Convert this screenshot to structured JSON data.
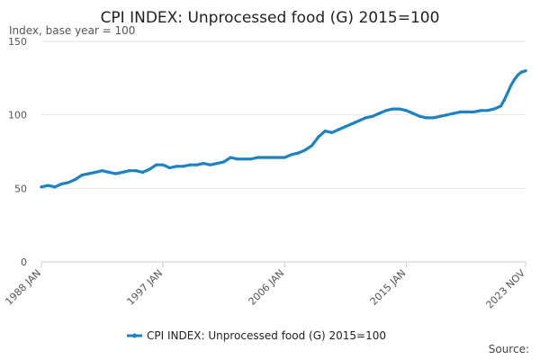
{
  "chart_data": {
    "type": "line",
    "title": "CPI INDEX: Unprocessed food (G) 2015=100",
    "subtitle": "Index, base year = 100",
    "xlabel": "",
    "ylabel": "Index, base year = 100",
    "ylim": [
      0,
      150
    ],
    "y_ticks": [
      0,
      50,
      100,
      150
    ],
    "x_range": [
      "1988-01",
      "2023-11"
    ],
    "x_tick_labels": [
      "1988 JAN",
      "1997 JAN",
      "2006 JAN",
      "2015 JAN",
      "2023 NOV"
    ],
    "x_tick_dates": [
      "1988-01",
      "1997-01",
      "2006-01",
      "2015-01",
      "2023-11"
    ],
    "grid": "horizontal",
    "legend_position": "bottom",
    "line_color": "#1f82c0",
    "source_label": "Source:",
    "series": [
      {
        "name": "CPI INDEX: Unprocessed food (G) 2015=100",
        "x": [
          "1988-01",
          "1988-07",
          "1989-01",
          "1989-07",
          "1990-01",
          "1990-07",
          "1991-01",
          "1991-07",
          "1992-01",
          "1992-07",
          "1993-01",
          "1993-07",
          "1994-01",
          "1994-07",
          "1995-01",
          "1995-07",
          "1996-01",
          "1996-07",
          "1997-01",
          "1997-07",
          "1998-01",
          "1998-07",
          "1999-01",
          "1999-07",
          "2000-01",
          "2000-07",
          "2001-01",
          "2001-07",
          "2002-01",
          "2002-07",
          "2003-01",
          "2003-07",
          "2004-01",
          "2004-07",
          "2005-01",
          "2005-07",
          "2006-01",
          "2006-07",
          "2007-01",
          "2007-07",
          "2008-01",
          "2008-07",
          "2009-01",
          "2009-07",
          "2010-01",
          "2010-07",
          "2011-01",
          "2011-07",
          "2012-01",
          "2012-07",
          "2013-01",
          "2013-07",
          "2014-01",
          "2014-07",
          "2015-01",
          "2015-07",
          "2016-01",
          "2016-07",
          "2017-01",
          "2017-07",
          "2018-01",
          "2018-07",
          "2019-01",
          "2019-07",
          "2020-01",
          "2020-07",
          "2021-01",
          "2021-07",
          "2022-01",
          "2022-04",
          "2022-07",
          "2022-10",
          "2023-01",
          "2023-04",
          "2023-07",
          "2023-11"
        ],
        "values": [
          51,
          52,
          51,
          53,
          54,
          56,
          59,
          60,
          61,
          62,
          61,
          60,
          61,
          62,
          62,
          61,
          63,
          66,
          66,
          64,
          65,
          65,
          66,
          66,
          67,
          66,
          67,
          68,
          71,
          70,
          70,
          70,
          71,
          71,
          71,
          71,
          71,
          73,
          74,
          76,
          79,
          85,
          89,
          88,
          90,
          92,
          94,
          96,
          98,
          99,
          101,
          103,
          104,
          104,
          103,
          101,
          99,
          98,
          98,
          99,
          100,
          101,
          102,
          102,
          102,
          103,
          103,
          104,
          106,
          110,
          115,
          120,
          124,
          127,
          129,
          130
        ]
      }
    ]
  }
}
